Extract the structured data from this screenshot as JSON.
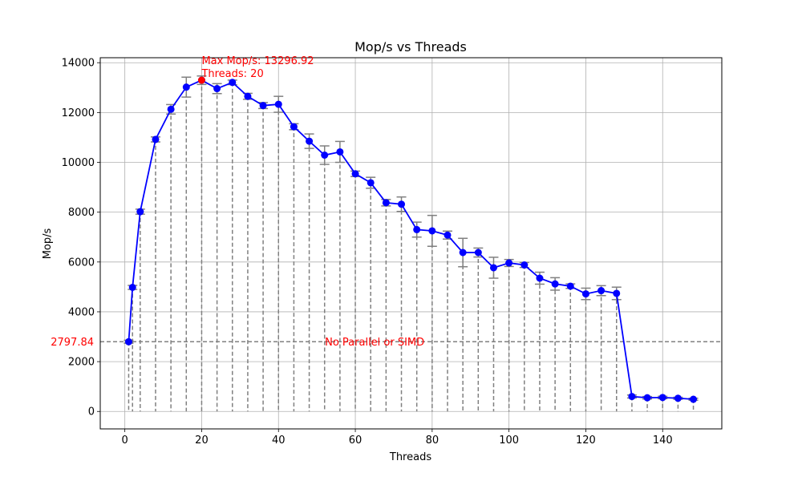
{
  "chart_data": {
    "type": "line",
    "title": "Mop/s vs Threads",
    "xlabel": "Threads",
    "ylabel": "Mop/s",
    "xlim": [
      -6.4,
      155.4
    ],
    "ylim": [
      -700,
      14200
    ],
    "xticks": [
      0,
      20,
      40,
      60,
      80,
      100,
      120,
      140
    ],
    "yticks": [
      0,
      2000,
      4000,
      6000,
      8000,
      10000,
      12000,
      14000
    ],
    "grid": true,
    "series": [
      {
        "color": "#0000ff",
        "errorbar_color": "#808080",
        "points": [
          {
            "x": 1,
            "y": 2798,
            "err": 60
          },
          {
            "x": 2,
            "y": 4980,
            "err": 80
          },
          {
            "x": 4,
            "y": 8020,
            "err": 100
          },
          {
            "x": 8,
            "y": 10920,
            "err": 100
          },
          {
            "x": 12,
            "y": 12130,
            "err": 190
          },
          {
            "x": 16,
            "y": 13020,
            "err": 400
          },
          {
            "x": 20,
            "y": 13297,
            "err": 170
          },
          {
            "x": 24,
            "y": 12960,
            "err": 200
          },
          {
            "x": 28,
            "y": 13210,
            "err": 90
          },
          {
            "x": 32,
            "y": 12650,
            "err": 120
          },
          {
            "x": 36,
            "y": 12280,
            "err": 120
          },
          {
            "x": 40,
            "y": 12330,
            "err": 320
          },
          {
            "x": 44,
            "y": 11430,
            "err": 120
          },
          {
            "x": 48,
            "y": 10850,
            "err": 290
          },
          {
            "x": 52,
            "y": 10290,
            "err": 370
          },
          {
            "x": 56,
            "y": 10420,
            "err": 420
          },
          {
            "x": 60,
            "y": 9540,
            "err": 110
          },
          {
            "x": 64,
            "y": 9180,
            "err": 220
          },
          {
            "x": 68,
            "y": 8380,
            "err": 130
          },
          {
            "x": 72,
            "y": 8320,
            "err": 290
          },
          {
            "x": 76,
            "y": 7300,
            "err": 300
          },
          {
            "x": 80,
            "y": 7250,
            "err": 620
          },
          {
            "x": 84,
            "y": 7080,
            "err": 160
          },
          {
            "x": 88,
            "y": 6380,
            "err": 570
          },
          {
            "x": 92,
            "y": 6380,
            "err": 180
          },
          {
            "x": 96,
            "y": 5770,
            "err": 420
          },
          {
            "x": 100,
            "y": 5960,
            "err": 140
          },
          {
            "x": 104,
            "y": 5880,
            "err": 100
          },
          {
            "x": 108,
            "y": 5350,
            "err": 240
          },
          {
            "x": 112,
            "y": 5120,
            "err": 250
          },
          {
            "x": 116,
            "y": 5030,
            "err": 90
          },
          {
            "x": 120,
            "y": 4720,
            "err": 230
          },
          {
            "x": 124,
            "y": 4850,
            "err": 200
          },
          {
            "x": 128,
            "y": 4740,
            "err": 250
          },
          {
            "x": 132,
            "y": 600,
            "err": 60
          },
          {
            "x": 136,
            "y": 550,
            "err": 50
          },
          {
            "x": 140,
            "y": 560,
            "err": 50
          },
          {
            "x": 144,
            "y": 530,
            "err": 40
          },
          {
            "x": 148,
            "y": 490,
            "err": 40
          }
        ]
      }
    ],
    "max_point": {
      "x": 20,
      "y": 13296.92,
      "color": "#ff0000"
    },
    "annotations": {
      "max_line1": "Max Mop/s: 13296.92",
      "max_line2": "Threads: 20",
      "baseline_value": 2797.84,
      "baseline_label": "2797.84",
      "baseline_text": "No Parallel or SIMD",
      "annotation_color": "#ff0000"
    }
  }
}
